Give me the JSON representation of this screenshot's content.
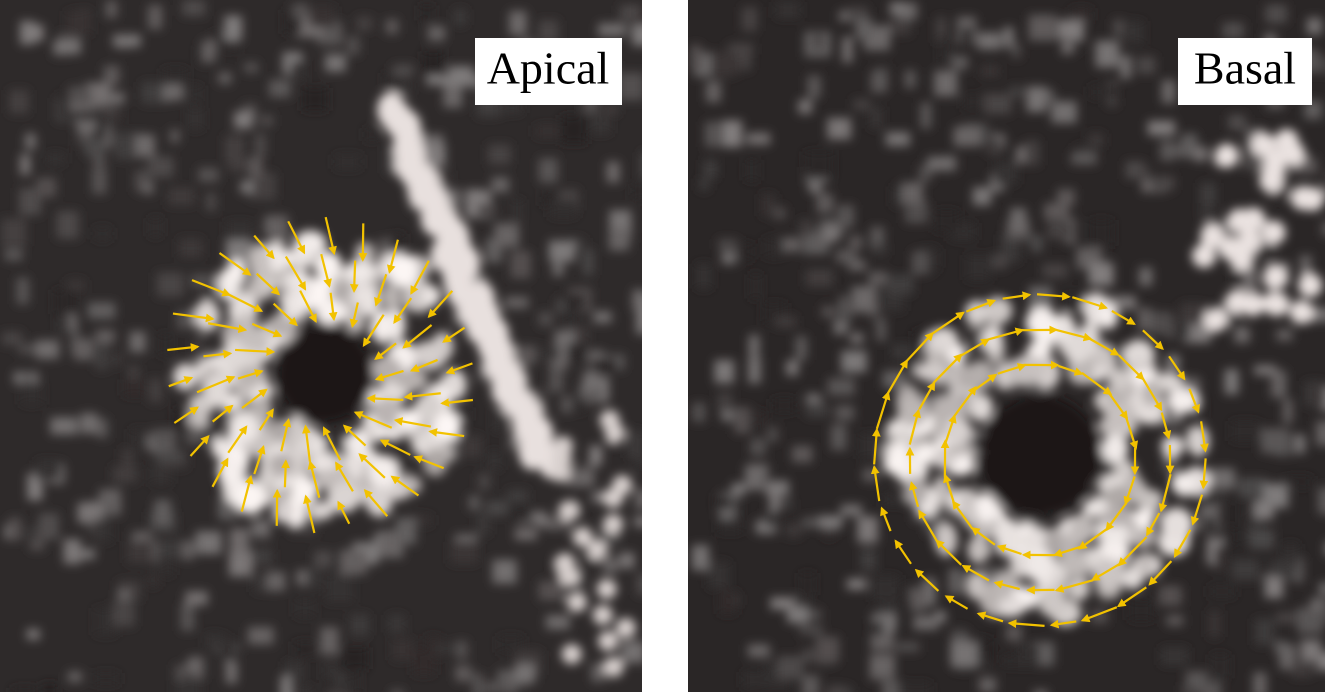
{
  "panels": [
    {
      "label": "Apical"
    },
    {
      "label": "Basal"
    }
  ]
}
